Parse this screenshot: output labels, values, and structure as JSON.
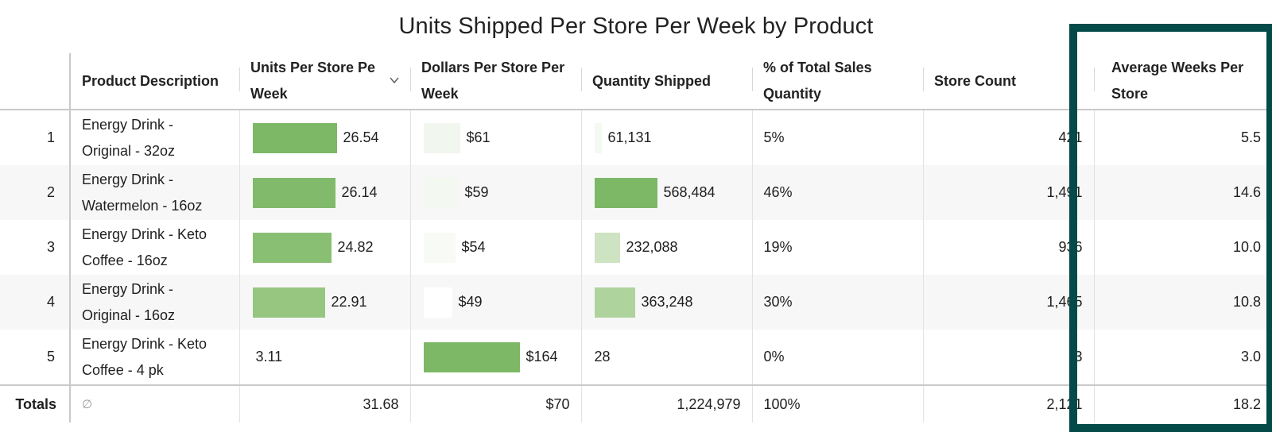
{
  "title": "Units Shipped Per Store Per Week by Product",
  "columns": {
    "product": "Product Description",
    "units": "Units Per Store Pe",
    "units_line2": "Week",
    "dollars": "Dollars Per Store Per",
    "dollars_line2": "Week",
    "quantity": "Quantity Shipped",
    "pct": "% of Total Sales",
    "pct_line2": "Quantity",
    "stores": "Store Count",
    "avgweeks": "Average Weeks Per",
    "avgweeks_line2": "Store"
  },
  "sort_icon": "chevron-down-icon",
  "rows": [
    {
      "index": "1",
      "desc1": "Energy Drink -",
      "desc2": "Original - 32oz",
      "units": "26.54",
      "units_bar": 1.0,
      "units_color": "#7db866",
      "dollars": "$61",
      "dollars_bar": 0.38,
      "dollars_color": "#f1f7ee",
      "quantity": "61,131",
      "quantity_bar": 0.1,
      "quantity_color": "#f4f9f2",
      "pct": "5%",
      "stores": "421",
      "avgweeks": "5.5"
    },
    {
      "index": "2",
      "desc1": "Energy Drink -",
      "desc2": "Watermelon - 16oz",
      "units": "26.14",
      "units_bar": 0.985,
      "units_color": "#80ba6a",
      "dollars": "$59",
      "dollars_bar": 0.36,
      "dollars_color": "#f3f8f0",
      "quantity": "568,484",
      "quantity_bar": 1.0,
      "quantity_color": "#7db866",
      "pct": "46%",
      "stores": "1,491",
      "avgweeks": "14.6"
    },
    {
      "index": "3",
      "desc1": "Energy Drink - Keto",
      "desc2": "Coffee - 16oz",
      "units": "24.82",
      "units_bar": 0.935,
      "units_color": "#89bf73",
      "dollars": "$54",
      "dollars_bar": 0.33,
      "dollars_color": "#f7faf5",
      "quantity": "232,088",
      "quantity_bar": 0.41,
      "quantity_color": "#cde3c2",
      "pct": "19%",
      "stores": "936",
      "avgweeks": "10.0"
    },
    {
      "index": "4",
      "desc1": "Energy Drink -",
      "desc2": "Original - 16oz",
      "units": "22.91",
      "units_bar": 0.863,
      "units_color": "#97c681",
      "dollars": "$49",
      "dollars_bar": 0.3,
      "dollars_color": "#ffffff",
      "quantity": "363,248",
      "quantity_bar": 0.64,
      "quantity_color": "#afd39c",
      "pct": "30%",
      "stores": "1,465",
      "avgweeks": "10.8"
    },
    {
      "index": "5",
      "desc1": "Energy Drink - Keto",
      "desc2": "Coffee - 4 pk",
      "units": "3.11",
      "units_bar": 0,
      "units_color": "#ffffff",
      "dollars": "$164",
      "dollars_bar": 1.0,
      "dollars_color": "#7db866",
      "quantity": "28",
      "quantity_bar": 0,
      "quantity_color": "#ffffff",
      "pct": "0%",
      "stores": "3",
      "avgweeks": "3.0"
    }
  ],
  "totals": {
    "label": "Totals",
    "null_symbol": "∅",
    "units": "31.68",
    "dollars": "$70",
    "quantity": "1,224,979",
    "pct": "100%",
    "stores": "2,121",
    "avgweeks": "18.2"
  },
  "highlight_color": "#034a48"
}
